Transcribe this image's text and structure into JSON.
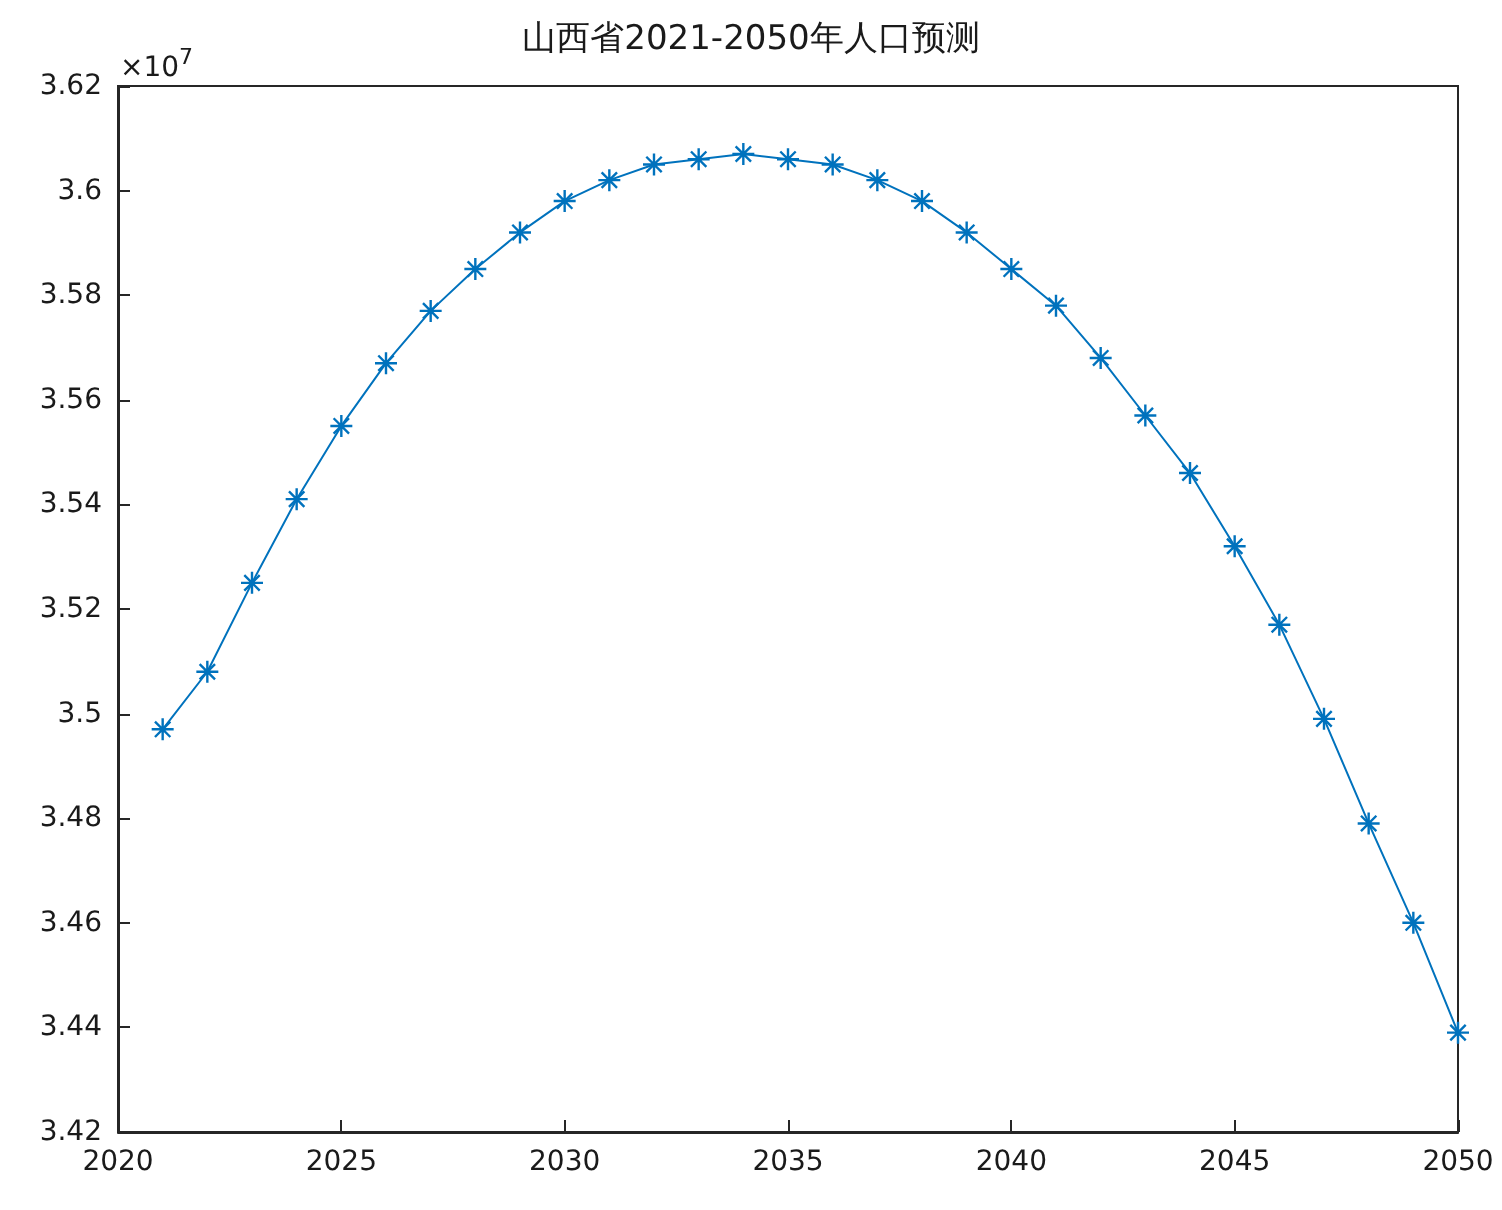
{
  "chart_data": {
    "type": "line",
    "title": "山西省2021-2050年人口预测",
    "x": [
      2021,
      2022,
      2023,
      2024,
      2025,
      2026,
      2027,
      2028,
      2029,
      2030,
      2031,
      2032,
      2033,
      2034,
      2035,
      2036,
      2037,
      2038,
      2039,
      2040,
      2041,
      2042,
      2043,
      2044,
      2045,
      2046,
      2047,
      2048,
      2049,
      2050
    ],
    "series": [
      {
        "color": "#0072bd",
        "values": [
          3.497,
          3.508,
          3.525,
          3.541,
          3.555,
          3.567,
          3.577,
          3.585,
          3.592,
          3.598,
          3.602,
          3.605,
          3.606,
          3.607,
          3.606,
          3.605,
          3.602,
          3.598,
          3.592,
          3.585,
          3.578,
          3.568,
          3.557,
          3.546,
          3.532,
          3.517,
          3.499,
          3.479,
          3.46,
          3.439
        ]
      }
    ],
    "xlim": [
      2020,
      2050
    ],
    "xticks": [
      2020,
      2025,
      2030,
      2035,
      2040,
      2045,
      2050
    ],
    "ylim": [
      3.42,
      3.62
    ],
    "yticks": [
      3.42,
      3.44,
      3.46,
      3.48,
      3.5,
      3.52,
      3.54,
      3.56,
      3.58,
      3.6,
      3.62
    ],
    "annotations": [
      "×10$^{7}$"
    ],
    "marker": "cross",
    "line_style": "solid",
    "grid": false
  }
}
